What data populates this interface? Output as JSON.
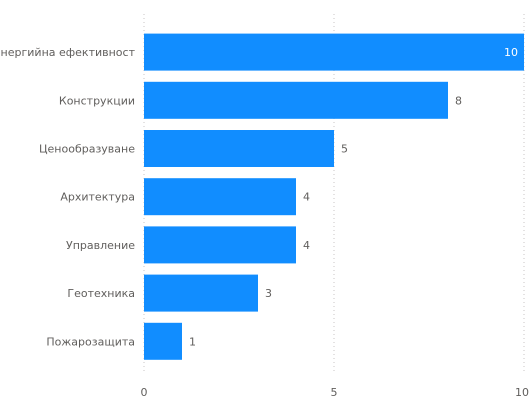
{
  "chart_data": {
    "type": "bar",
    "orientation": "horizontal",
    "categories": [
      "Енергийна ефективност",
      "Конструкции",
      "Ценообразуване",
      "Архитектура",
      "Управление",
      "Геотехника",
      "Пожарозащита"
    ],
    "values": [
      10,
      8,
      5,
      4,
      4,
      3,
      1
    ],
    "xlim": [
      0,
      10
    ],
    "x_ticks": [
      "0",
      "5",
      "10"
    ],
    "grid": "vertical dotted",
    "legend": "none",
    "colors": {
      "bar": "#118DFF",
      "label": "#605E5C",
      "grid": "#C8C6C4",
      "inside_label": "#FFFFFF"
    }
  }
}
